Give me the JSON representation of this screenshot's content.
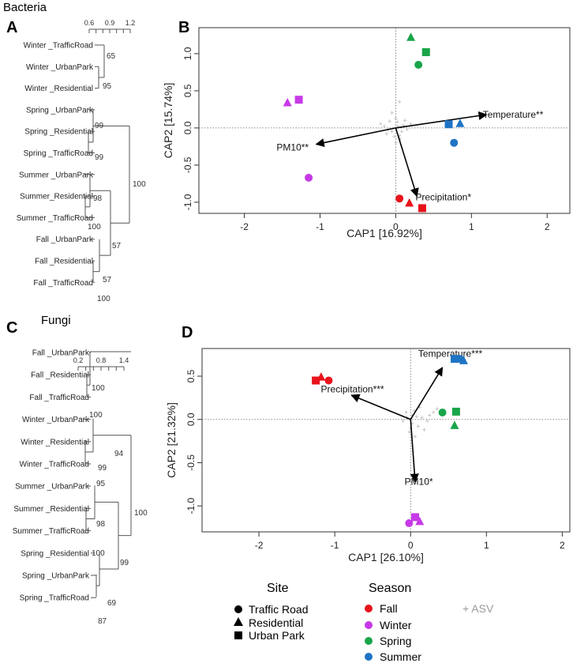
{
  "figure": {
    "panel_labels": [
      "A",
      "B",
      "C",
      "D"
    ],
    "group_titles": {
      "bacteria": "Bacteria",
      "fungi": "Fungi"
    }
  },
  "colors": {
    "fall": "#e8131b",
    "winter": "#c739e8",
    "spring": "#1aa54a",
    "summer": "#1f74c4",
    "asv": "#b0b0b0",
    "axis": "#333333"
  },
  "legend": {
    "site_title": "Site",
    "season_title": "Season",
    "sites": [
      {
        "label": "Traffic Road",
        "shape": "circle"
      },
      {
        "label": "Residential",
        "shape": "triangle"
      },
      {
        "label": "Urban Park",
        "shape": "square"
      }
    ],
    "seasons": [
      {
        "label": "Fall",
        "color": "#e8131b"
      },
      {
        "label": "Winter",
        "color": "#c739e8"
      },
      {
        "label": "Spring",
        "color": "#1aa54a"
      },
      {
        "label": "Summer",
        "color": "#1f74c4"
      }
    ],
    "asv_label": "+ ASV"
  },
  "chart_data": [
    {
      "panel": "A",
      "type": "dendrogram",
      "title": "Bacteria",
      "scale_ticks": [
        "0.6",
        "0.9",
        "1.2"
      ],
      "leaves": [
        "Winter _TrafficRoad",
        "Winter _UrbanPark",
        "Winter _Residential",
        "Spring _UrbanPark",
        "Spring _Residential",
        "Spring _TrafficRoad",
        "Summer _UrbanPark",
        "Summer_Residential",
        "Summer _TrafficRoad",
        "Fall _UrbanPark",
        "Fall _Residential",
        "Fall _TrafficRoad"
      ],
      "support_values": [
        "65",
        "95",
        "99",
        "99",
        "98",
        "100",
        "57",
        "57",
        "100",
        "100"
      ]
    },
    {
      "panel": "B",
      "type": "scatter",
      "xlabel": "CAP1 [16.92%]",
      "ylabel": "CAP2 [15.74%]",
      "xlim": [
        -2.6,
        2.3
      ],
      "ylim": [
        -1.15,
        1.35
      ],
      "xticks": [
        -2,
        -1,
        0,
        1,
        2
      ],
      "yticks": [
        -1.0,
        -0.5,
        0.0,
        0.5,
        1.0
      ],
      "points": [
        {
          "season": "fall",
          "site": "circle",
          "x": 0.05,
          "y": -0.95
        },
        {
          "season": "fall",
          "site": "triangle",
          "x": 0.18,
          "y": -1.01
        },
        {
          "season": "fall",
          "site": "square",
          "x": 0.35,
          "y": -1.08
        },
        {
          "season": "winter",
          "site": "circle",
          "x": -1.15,
          "y": -0.67
        },
        {
          "season": "winter",
          "site": "triangle",
          "x": -1.43,
          "y": 0.34
        },
        {
          "season": "winter",
          "site": "square",
          "x": -1.28,
          "y": 0.38
        },
        {
          "season": "spring",
          "site": "circle",
          "x": 0.3,
          "y": 0.85
        },
        {
          "season": "spring",
          "site": "triangle",
          "x": 0.2,
          "y": 1.22
        },
        {
          "season": "spring",
          "site": "square",
          "x": 0.4,
          "y": 1.02
        },
        {
          "season": "summer",
          "site": "circle",
          "x": 0.77,
          "y": -0.2
        },
        {
          "season": "summer",
          "site": "triangle",
          "x": 0.85,
          "y": 0.06
        },
        {
          "season": "summer",
          "site": "square",
          "x": 0.7,
          "y": 0.05
        }
      ],
      "vectors": [
        {
          "label": "Temperature**",
          "x": 1.2,
          "y": 0.18,
          "lx": 1.15,
          "ly": 0.18,
          "anchor": "start"
        },
        {
          "label": "PM10**",
          "x": -1.05,
          "y": -0.22,
          "lx": -1.15,
          "ly": -0.26,
          "anchor": "end"
        },
        {
          "label": "Precipitation*",
          "x": 0.28,
          "y": -0.92,
          "lx": 0.26,
          "ly": -0.93,
          "anchor": "start"
        }
      ],
      "asv_points": [
        [
          -0.15,
          0.02
        ],
        [
          -0.05,
          -0.05
        ],
        [
          0.02,
          0.08
        ],
        [
          0.05,
          -0.1
        ],
        [
          -0.1,
          -0.02
        ],
        [
          0.1,
          0.03
        ],
        [
          0.0,
          0.12
        ],
        [
          -0.02,
          -0.12
        ],
        [
          0.08,
          -0.05
        ],
        [
          -0.2,
          0.05
        ],
        [
          0.12,
          0.1
        ],
        [
          -0.08,
          0.09
        ],
        [
          0.03,
          0.02
        ],
        [
          0.06,
          -0.15
        ],
        [
          0.15,
          -0.02
        ],
        [
          -0.12,
          -0.08
        ],
        [
          0.05,
          0.35
        ],
        [
          0.2,
          0.05
        ],
        [
          0.0,
          -0.2
        ],
        [
          -0.05,
          0.2
        ]
      ]
    },
    {
      "panel": "C",
      "type": "dendrogram",
      "title": "Fungi",
      "scale_ticks": [
        "0.2",
        "0.8",
        "1.4"
      ],
      "leaves": [
        "Fall _UrbanPark",
        "Fall _Residential",
        "Fall _TrafficRoad",
        "Winter _UrbanPark",
        "Winter _Residential",
        "Winter _TrafficRoad",
        "Summer _UrbanPark",
        "Summer _Residential",
        "Summer _TrafficRoad",
        "Spring _Residential",
        "Spring _UrbanPark",
        "Spring _TrafficRoad"
      ],
      "support_values": [
        "100",
        "100",
        "94",
        "99",
        "95",
        "100",
        "98",
        "100",
        "99",
        "69",
        "87"
      ]
    },
    {
      "panel": "D",
      "type": "scatter",
      "xlabel": "CAP1 [26.10%]",
      "ylabel": "CAP2 [21.32%]",
      "xlim": [
        -2.75,
        2.1
      ],
      "ylim": [
        -1.3,
        0.82
      ],
      "xticks": [
        -2,
        -1,
        0,
        1,
        2
      ],
      "yticks": [
        -1.0,
        -0.5,
        0.0,
        0.5
      ],
      "points": [
        {
          "season": "fall",
          "site": "circle",
          "x": -1.08,
          "y": 0.45
        },
        {
          "season": "fall",
          "site": "triangle",
          "x": -1.18,
          "y": 0.49
        },
        {
          "season": "fall",
          "site": "square",
          "x": -1.25,
          "y": 0.45
        },
        {
          "season": "winter",
          "site": "circle",
          "x": -0.02,
          "y": -1.2
        },
        {
          "season": "winter",
          "site": "triangle",
          "x": 0.12,
          "y": -1.18
        },
        {
          "season": "winter",
          "site": "square",
          "x": 0.06,
          "y": -1.13
        },
        {
          "season": "spring",
          "site": "circle",
          "x": 0.42,
          "y": 0.08
        },
        {
          "season": "spring",
          "site": "triangle",
          "x": 0.58,
          "y": -0.07
        },
        {
          "season": "spring",
          "site": "square",
          "x": 0.6,
          "y": 0.09
        },
        {
          "season": "summer",
          "site": "circle",
          "x": 0.65,
          "y": 0.7
        },
        {
          "season": "summer",
          "site": "triangle",
          "x": 0.7,
          "y": 0.68
        },
        {
          "season": "summer",
          "site": "square",
          "x": 0.58,
          "y": 0.7
        }
      ],
      "vectors": [
        {
          "label": "Temperature***",
          "x": 0.42,
          "y": 0.6,
          "lx": 0.1,
          "ly": 0.76,
          "anchor": "start"
        },
        {
          "label": "Precipitation***",
          "x": -0.78,
          "y": 0.28,
          "lx": -0.35,
          "ly": 0.35,
          "anchor": "end"
        },
        {
          "label": "PM10*",
          "x": 0.06,
          "y": -0.72,
          "lx": -0.08,
          "ly": -0.72,
          "anchor": "start"
        }
      ],
      "asv_points": [
        [
          -0.05,
          0.02
        ],
        [
          0.02,
          -0.05
        ],
        [
          0.08,
          0.03
        ],
        [
          0.0,
          -0.1
        ],
        [
          -0.1,
          -0.02
        ],
        [
          0.1,
          -0.08
        ],
        [
          0.05,
          0.1
        ],
        [
          0.25,
          0.05
        ],
        [
          0.18,
          -0.12
        ],
        [
          -0.02,
          -0.15
        ],
        [
          0.3,
          0.08
        ],
        [
          0.12,
          0.14
        ],
        [
          0.06,
          -0.2
        ],
        [
          0.22,
          -0.02
        ],
        [
          0.35,
          0.12
        ],
        [
          0.02,
          0.05
        ],
        [
          0.15,
          0.02
        ],
        [
          -0.06,
          0.08
        ]
      ]
    }
  ]
}
